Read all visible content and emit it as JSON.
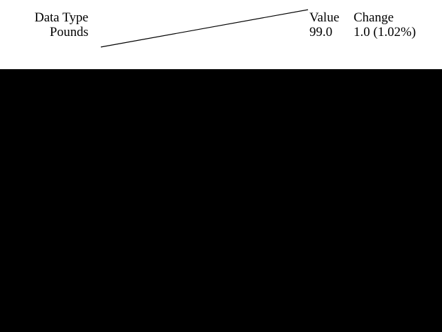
{
  "header": {
    "data_type_label": "Data Type",
    "value_label": "Value",
    "change_label": "Change"
  },
  "row": {
    "data_type": "Pounds",
    "value": "99.0",
    "change": "1.0 (1.02%)"
  },
  "colors": {
    "panel_background": "#ffffff",
    "page_background": "#000000",
    "text": "#000000",
    "sparkline_stroke": "#000000"
  },
  "chart_data": {
    "type": "line",
    "series": [
      {
        "values": [
          98.0,
          99.0
        ]
      }
    ],
    "grid": false,
    "legend": "none"
  }
}
